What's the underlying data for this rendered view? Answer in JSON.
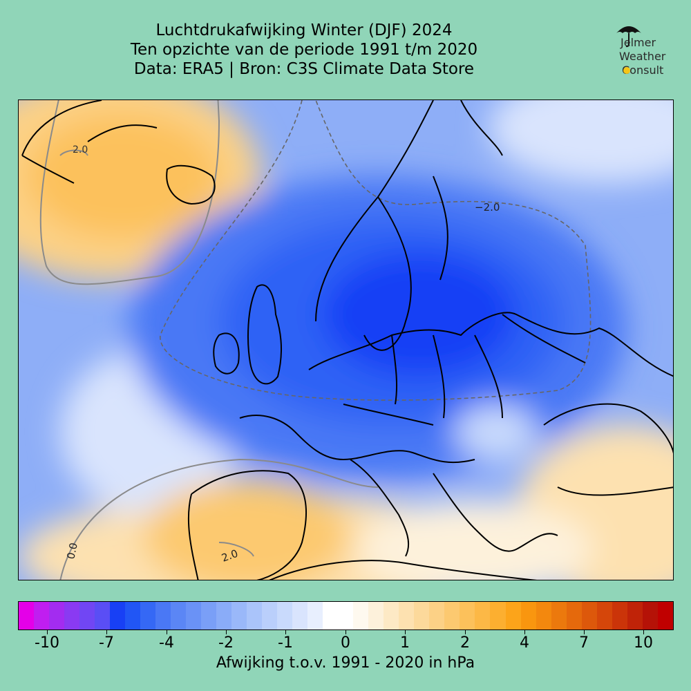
{
  "title": {
    "line1": "Luchtdrukafwijking Winter (DJF) 2024",
    "line2": "Ten opzichte van de periode 1991 t/m 2020",
    "line3": "Data: ERA5 | Bron: C3S Climate Data Store"
  },
  "logo": {
    "line1": "Jelmer",
    "line2": "Weather",
    "line3": "Consult",
    "icon": "umbrella-icon",
    "sun_icon": "sun-icon"
  },
  "map": {
    "contour_labels": {
      "greenland": "2.0",
      "east": "−2.0",
      "atlantic": "0.0",
      "iberia": "2.0"
    },
    "colors": {
      "deep_blue": "#1f4df5",
      "mid_blue": "#5b86f5",
      "light_blue": "#b9cdfb",
      "white": "#ffffff",
      "light_orange": "#fde7b8",
      "orange": "#fdc46e"
    }
  },
  "colorbar": {
    "label": "Afwijking t.o.v. 1991 - 2020 in hPa",
    "ticks": [
      "-10",
      "-7",
      "-4",
      "-2",
      "-1",
      "0",
      "1",
      "2",
      "4",
      "7",
      "10"
    ],
    "colors": [
      "#e400e8",
      "#c01ef0",
      "#a32cf0",
      "#8a3af2",
      "#7146f4",
      "#5a4ef5",
      "#1840f5",
      "#2156f5",
      "#3568f5",
      "#4a78f5",
      "#5b86f5",
      "#6a92f6",
      "#7a9ff7",
      "#8aacf8",
      "#9ab8f9",
      "#aac4fa",
      "#bacffb",
      "#c9dafc",
      "#d9e4fd",
      "#e8effe",
      "#ffffff",
      "#ffffff",
      "#fef9ef",
      "#fdf1db",
      "#fde9c5",
      "#fde1b0",
      "#fcd99b",
      "#fcd186",
      "#fcc970",
      "#fcc15b",
      "#fcb846",
      "#fcaf30",
      "#fca41a",
      "#f9960f",
      "#f3880e",
      "#ec790d",
      "#e5690c",
      "#dd580b",
      "#d5460a",
      "#cb3409",
      "#c02308",
      "#b51207",
      "#c00000"
    ]
  }
}
